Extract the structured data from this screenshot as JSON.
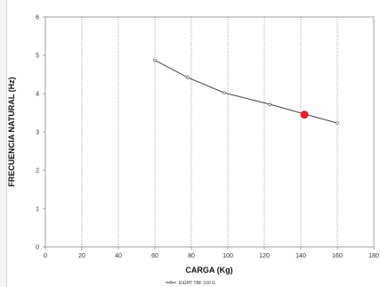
{
  "chart_data": {
    "type": "line",
    "title": "",
    "xlabel": "CARGA (Kg)",
    "ylabel": "FRECUENCIA NATURAL (Hz)",
    "xlim": [
      0,
      180
    ],
    "ylim": [
      0,
      6
    ],
    "xticks": [
      0,
      20,
      40,
      60,
      80,
      100,
      120,
      140,
      160,
      180
    ],
    "yticks": [
      0,
      1,
      2,
      3,
      4,
      5,
      6
    ],
    "grid": "vertical-dotted",
    "legend_position": "bottom-center",
    "series": [
      {
        "name": "EIGHT TBF 160 G",
        "color": "#444444",
        "x": [
          60,
          78,
          98,
          123,
          160
        ],
        "y": [
          4.87,
          4.42,
          4.02,
          3.72,
          3.23
        ]
      }
    ],
    "highlight": {
      "x": 142,
      "y": 3.45,
      "color": "#e8202a"
    }
  }
}
